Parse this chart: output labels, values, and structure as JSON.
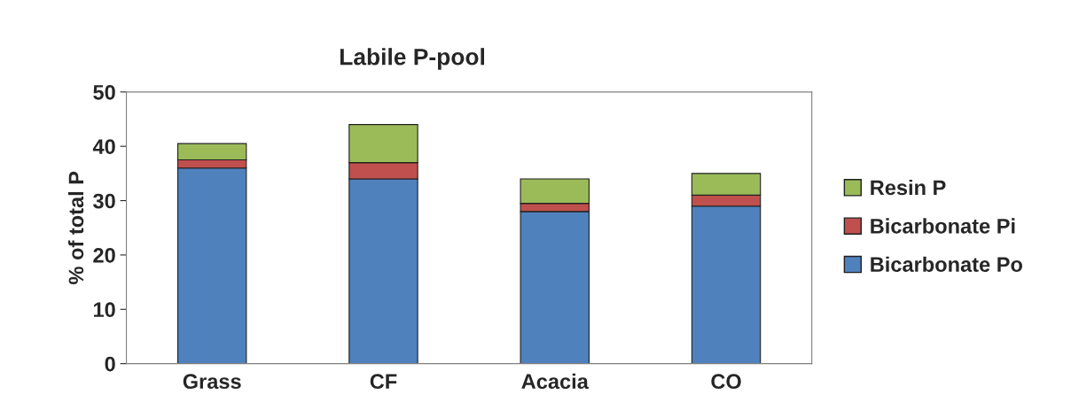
{
  "chart_data": {
    "type": "bar",
    "title": "Labile P-pool",
    "ylabel": "% of total P",
    "categories": [
      "Grass",
      "CF",
      "Acacia",
      "CO"
    ],
    "stacked": true,
    "series": [
      {
        "name": "Bicarbonate Po",
        "color": "#4f81bd",
        "values": [
          36,
          34,
          28,
          29
        ]
      },
      {
        "name": "Bicarbonate Pi",
        "color": "#c0504d",
        "values": [
          1.5,
          3,
          1.5,
          2
        ]
      },
      {
        "name": "Resin P",
        "color": "#9bbb59",
        "values": [
          3,
          7,
          4.5,
          4
        ]
      }
    ],
    "ylim": [
      0,
      50
    ],
    "yticks": [
      0,
      10,
      20,
      30,
      40,
      50
    ],
    "grid": false,
    "legend": "right"
  }
}
